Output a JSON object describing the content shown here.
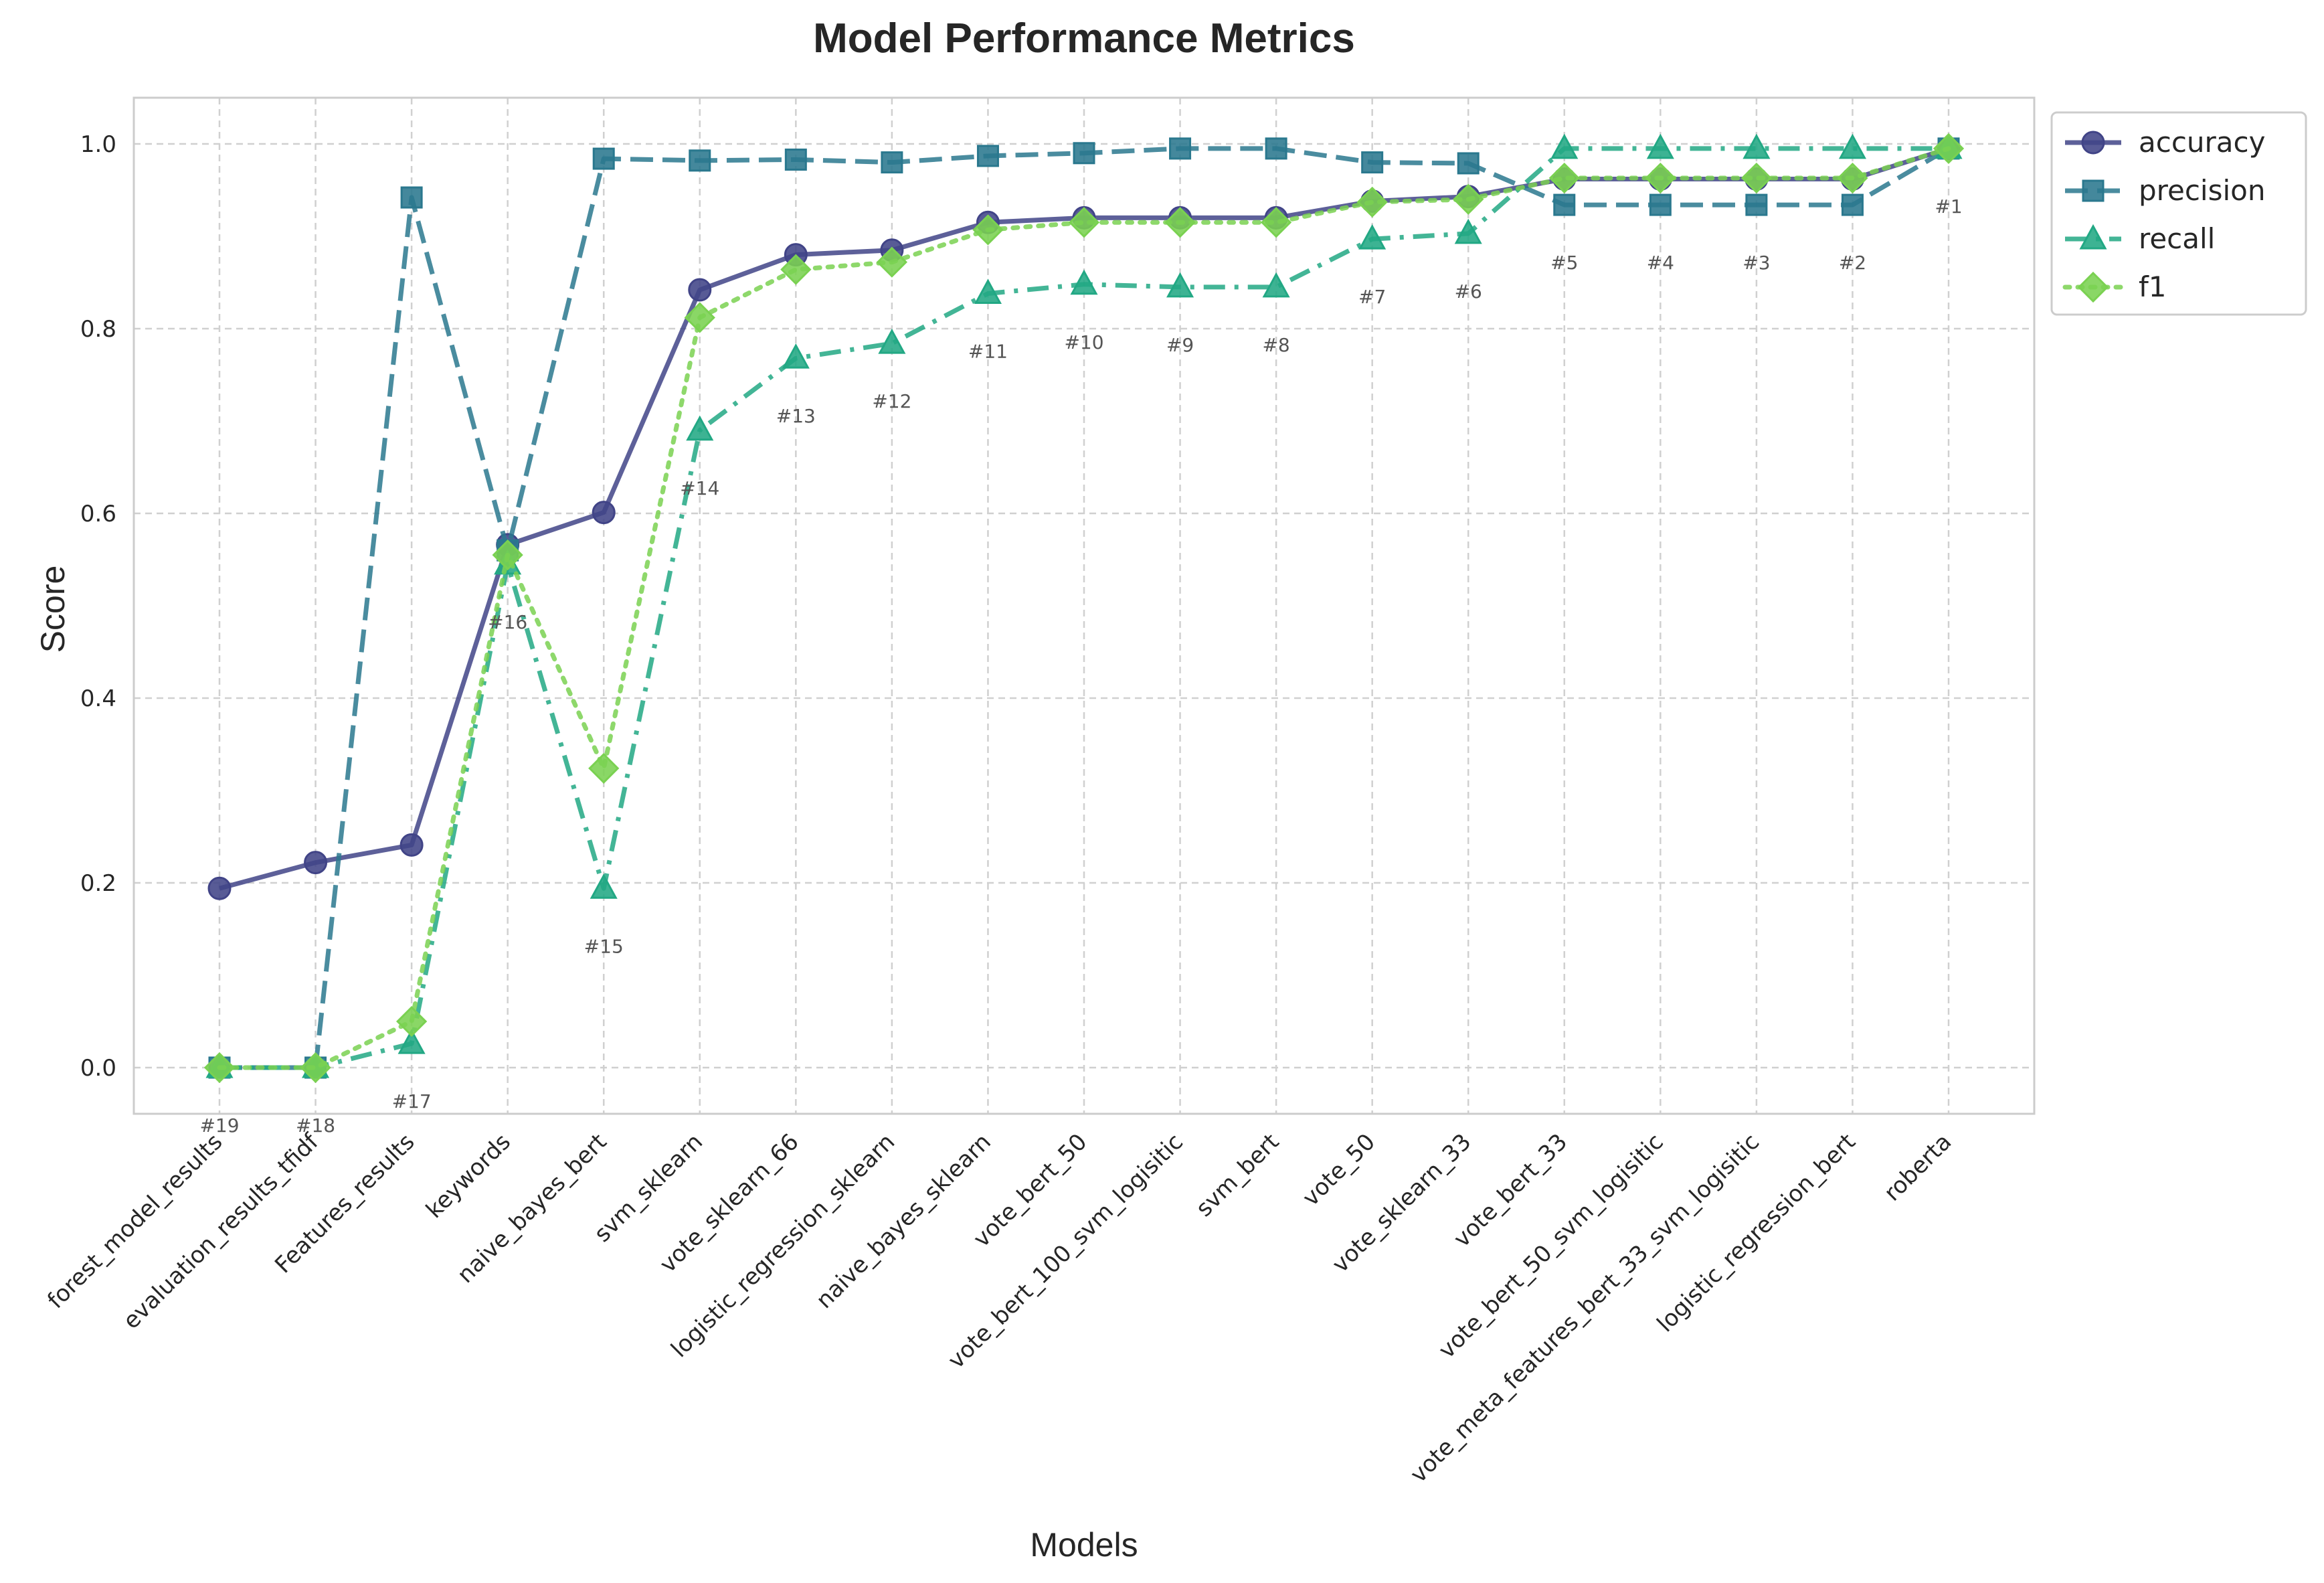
{
  "chart_data": {
    "type": "line",
    "title": "Model Performance Metrics",
    "xlabel": "Models",
    "ylabel": "Score",
    "ylim": [
      -0.05,
      1.05
    ],
    "yticks": [
      "0.0",
      "0.2",
      "0.4",
      "0.6",
      "0.8",
      "1.0"
    ],
    "grid": true,
    "legend_position": "outside-top-right",
    "categories": [
      "forest_model_results",
      "evaluation_results_tfidf",
      "Features_results",
      "keywords",
      "naive_bayes_bert",
      "svm_sklearn",
      "vote_sklearn_66",
      "logistic_regression_sklearn",
      "naive_bayes_sklearn",
      "vote_bert_50",
      "vote_bert_100_svm_logisitic",
      "svm_bert",
      "vote_50",
      "vote_sklearn_33",
      "vote_bert_33",
      "vote_bert_50_svm_logisitic",
      "vote_meta_features_bert_33_svm_logisitic",
      "logistic_regression_bert",
      "roberta"
    ],
    "ranks": [
      "#19",
      "#18",
      "#17",
      "#16",
      "#15",
      "#14",
      "#13",
      "#12",
      "#11",
      "#10",
      "#9",
      "#8",
      "#7",
      "#6",
      "#5",
      "#4",
      "#3",
      "#2",
      "#1"
    ],
    "series": [
      {
        "name": "accuracy",
        "color": "#414487",
        "marker": "circle",
        "dash": "solid",
        "values": [
          0.194,
          0.222,
          0.241,
          0.566,
          0.601,
          0.842,
          0.88,
          0.885,
          0.915,
          0.92,
          0.92,
          0.92,
          0.938,
          0.943,
          0.962,
          0.962,
          0.962,
          0.962,
          0.995
        ]
      },
      {
        "name": "precision",
        "color": "#2a788e",
        "marker": "square",
        "dash": "dashed",
        "values": [
          0.0,
          0.0,
          0.942,
          0.56,
          0.984,
          0.982,
          0.983,
          0.98,
          0.987,
          0.99,
          0.995,
          0.995,
          0.98,
          0.979,
          0.934,
          0.934,
          0.934,
          0.934,
          0.995
        ]
      },
      {
        "name": "recall",
        "color": "#22a884",
        "marker": "triangle",
        "dash": "dashdot",
        "values": [
          0.0,
          0.0,
          0.026,
          0.545,
          0.194,
          0.69,
          0.768,
          0.784,
          0.838,
          0.848,
          0.845,
          0.845,
          0.897,
          0.903,
          0.995,
          0.995,
          0.995,
          0.995,
          0.995
        ]
      },
      {
        "name": "f1",
        "color": "#7ad151",
        "marker": "diamond",
        "dash": "dotted",
        "values": [
          0.0,
          0.0,
          0.05,
          0.555,
          0.324,
          0.812,
          0.864,
          0.872,
          0.907,
          0.915,
          0.915,
          0.915,
          0.937,
          0.94,
          0.963,
          0.963,
          0.963,
          0.963,
          0.995
        ]
      }
    ]
  }
}
